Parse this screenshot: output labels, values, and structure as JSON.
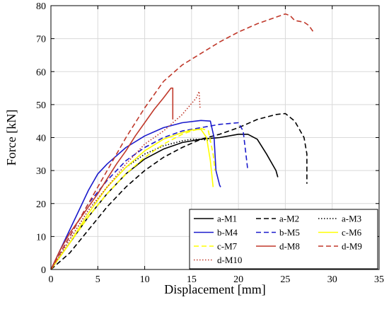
{
  "chart_data": {
    "type": "line",
    "title": "",
    "xlabel": "Displacement [mm]",
    "ylabel": "Force [kN]",
    "xlim": [
      0,
      35
    ],
    "ylim": [
      0,
      80
    ],
    "xticks": [
      "0",
      "5",
      "10",
      "15",
      "20",
      "25",
      "30",
      "35"
    ],
    "yticks": [
      "0",
      "10",
      "20",
      "30",
      "40",
      "50",
      "60",
      "70",
      "80"
    ],
    "grid": true,
    "legend_position": "bottom-right",
    "legend_columns": 3,
    "series": [
      {
        "name": "a-M1",
        "color": "#000000",
        "dash": "solid",
        "points": [
          [
            0,
            0
          ],
          [
            2,
            8
          ],
          [
            4,
            16
          ],
          [
            6,
            23
          ],
          [
            8,
            29
          ],
          [
            10,
            33.5
          ],
          [
            12,
            36.5
          ],
          [
            14,
            38.5
          ],
          [
            16,
            39.5
          ],
          [
            18,
            40
          ],
          [
            20,
            41
          ],
          [
            21,
            41
          ],
          [
            22,
            39.5
          ],
          [
            23,
            35
          ],
          [
            24,
            30
          ],
          [
            24.2,
            28
          ]
        ]
      },
      {
        "name": "a-M2",
        "color": "#000000",
        "dash": "dashed",
        "points": [
          [
            0,
            0
          ],
          [
            2,
            5
          ],
          [
            4,
            12
          ],
          [
            6,
            19
          ],
          [
            8,
            25
          ],
          [
            10,
            30
          ],
          [
            12,
            34
          ],
          [
            14,
            37
          ],
          [
            16,
            39.5
          ],
          [
            18,
            41
          ],
          [
            20,
            43
          ],
          [
            22,
            45.5
          ],
          [
            24,
            47
          ],
          [
            25,
            47.3
          ],
          [
            26,
            45
          ],
          [
            27,
            40
          ],
          [
            27.3,
            35
          ],
          [
            27.3,
            26
          ]
        ]
      },
      {
        "name": "a-M3",
        "color": "#000000",
        "dash": "dotted",
        "points": [
          [
            0,
            0
          ],
          [
            2,
            9
          ],
          [
            4,
            18
          ],
          [
            6,
            25
          ],
          [
            8,
            31
          ],
          [
            10,
            35
          ],
          [
            12,
            37.5
          ],
          [
            14,
            39
          ],
          [
            15,
            39.5
          ],
          [
            16,
            39.5
          ],
          [
            17,
            39
          ]
        ]
      },
      {
        "name": "b-M4",
        "color": "#1a1acc",
        "dash": "solid",
        "points": [
          [
            0,
            0
          ],
          [
            1,
            6
          ],
          [
            2,
            12
          ],
          [
            3,
            18
          ],
          [
            4,
            24
          ],
          [
            5,
            29
          ],
          [
            6,
            32
          ],
          [
            8,
            37
          ],
          [
            10,
            40.5
          ],
          [
            12,
            43
          ],
          [
            14,
            44.5
          ],
          [
            16,
            45.2
          ],
          [
            17,
            45
          ],
          [
            17.4,
            40
          ],
          [
            17.6,
            30
          ],
          [
            18,
            25.5
          ],
          [
            18.1,
            25
          ]
        ]
      },
      {
        "name": "b-M5",
        "color": "#1a1acc",
        "dash": "dashed",
        "points": [
          [
            0,
            0
          ],
          [
            2,
            10
          ],
          [
            4,
            20
          ],
          [
            6,
            27
          ],
          [
            8,
            33
          ],
          [
            10,
            37
          ],
          [
            12,
            40
          ],
          [
            14,
            42
          ],
          [
            16,
            43
          ],
          [
            18,
            44
          ],
          [
            20,
            44.5
          ],
          [
            20.5,
            42
          ],
          [
            20.8,
            35
          ],
          [
            21,
            30
          ]
        ]
      },
      {
        "name": "c-M6",
        "color": "#ffff00",
        "dash": "solid",
        "points": [
          [
            0,
            0
          ],
          [
            2,
            8
          ],
          [
            4,
            17
          ],
          [
            6,
            25
          ],
          [
            8,
            31
          ],
          [
            10,
            36
          ],
          [
            12,
            39.5
          ],
          [
            14,
            41.5
          ],
          [
            15,
            42.3
          ],
          [
            16,
            42.5
          ],
          [
            16.6,
            40
          ],
          [
            17,
            33
          ],
          [
            17.3,
            25
          ]
        ]
      },
      {
        "name": "c-M7",
        "color": "#ffff00",
        "dash": "dashed",
        "points": [
          [
            0,
            0
          ],
          [
            2,
            8
          ],
          [
            4,
            16
          ],
          [
            6,
            23
          ],
          [
            8,
            29
          ],
          [
            10,
            34
          ],
          [
            12,
            38
          ],
          [
            14,
            41
          ],
          [
            15,
            42
          ],
          [
            16,
            42.8
          ],
          [
            16.8,
            42
          ],
          [
            17.3,
            35
          ],
          [
            17.5,
            30
          ]
        ]
      },
      {
        "name": "d-M8",
        "color": "#c0392b",
        "dash": "solid",
        "points": [
          [
            0,
            0
          ],
          [
            1,
            6
          ],
          [
            2,
            11
          ],
          [
            3,
            15
          ],
          [
            4,
            19
          ],
          [
            5,
            23
          ],
          [
            6,
            27.5
          ],
          [
            7,
            32
          ],
          [
            8,
            36
          ],
          [
            9,
            40.5
          ],
          [
            10,
            44.5
          ],
          [
            11,
            48.5
          ],
          [
            12,
            52
          ],
          [
            12.8,
            55
          ],
          [
            13,
            55
          ],
          [
            13,
            50
          ],
          [
            13,
            45.5
          ]
        ]
      },
      {
        "name": "d-M9",
        "color": "#c0392b",
        "dash": "dashed",
        "points": [
          [
            0,
            0
          ],
          [
            2,
            10
          ],
          [
            4,
            20
          ],
          [
            6,
            30
          ],
          [
            8,
            40
          ],
          [
            10,
            49
          ],
          [
            12,
            57
          ],
          [
            14,
            62
          ],
          [
            16,
            65.5
          ],
          [
            18,
            69
          ],
          [
            20,
            72
          ],
          [
            22,
            74.5
          ],
          [
            24,
            76.5
          ],
          [
            25,
            77.5
          ],
          [
            25.5,
            77
          ],
          [
            26,
            75.5
          ],
          [
            27,
            75
          ],
          [
            27.5,
            74
          ],
          [
            28,
            72
          ]
        ]
      },
      {
        "name": "d-M10",
        "color": "#c0392b",
        "dash": "dotted",
        "points": [
          [
            0,
            0
          ],
          [
            2,
            9
          ],
          [
            4,
            18
          ],
          [
            6,
            25
          ],
          [
            8,
            32
          ],
          [
            10,
            38
          ],
          [
            12,
            42
          ],
          [
            14,
            47
          ],
          [
            15.5,
            52
          ],
          [
            15.8,
            54
          ],
          [
            15.9,
            49
          ]
        ]
      }
    ]
  }
}
